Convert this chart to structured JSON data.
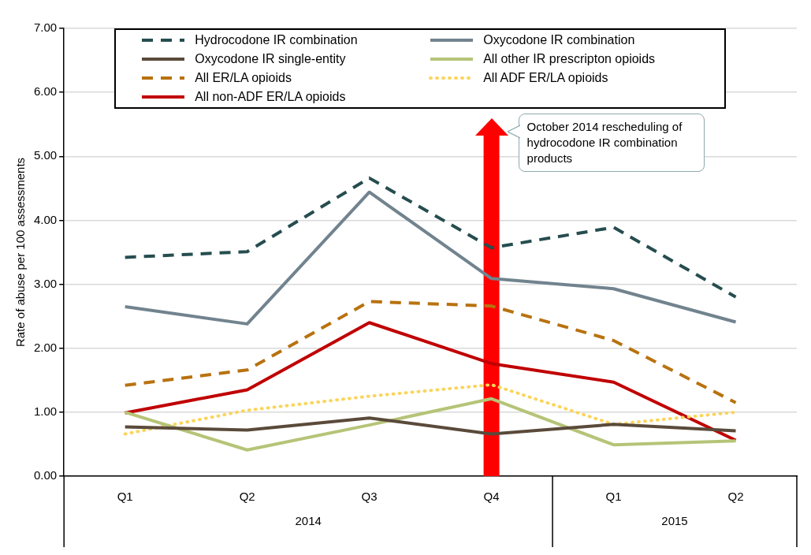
{
  "chart_data": {
    "type": "line",
    "ylabel": "Rate of abuse per 100 assessments",
    "categories": [
      "Q1",
      "Q2",
      "Q3",
      "Q4",
      "Q1",
      "Q2"
    ],
    "series": [
      {
        "name": "Hydrocodone IR combination",
        "color": "#264d4f",
        "line_style": "dashed",
        "values": [
          3.42,
          3.51,
          4.66,
          3.57,
          3.89,
          2.8
        ]
      },
      {
        "name": "Oxycodone IR combination",
        "color": "#71838e",
        "line_style": "solid",
        "values": [
          2.65,
          2.38,
          4.44,
          3.09,
          2.93,
          2.41
        ]
      },
      {
        "name": "Oxycodone IR single-entity",
        "color": "#5a4a3a",
        "line_style": "solid",
        "values": [
          0.77,
          0.72,
          0.91,
          0.66,
          0.81,
          0.71
        ]
      },
      {
        "name": "All other IR prescripton opioids",
        "color": "#b5c477",
        "line_style": "solid",
        "values": [
          1.0,
          0.41,
          0.8,
          1.21,
          0.49,
          0.55
        ]
      },
      {
        "name": "All ER/LA opioids",
        "color": "#b8720f",
        "line_style": "dashed",
        "values": [
          1.42,
          1.66,
          2.73,
          2.66,
          2.12,
          1.15
        ]
      },
      {
        "name": "All ADF ER/LA opioids",
        "color": "#fad55c",
        "line_style": "dotted",
        "values": [
          0.66,
          1.03,
          1.25,
          1.43,
          0.81,
          1.0
        ]
      },
      {
        "name": "All non-ADF ER/LA opioids",
        "color": "#c00000",
        "line_style": "solid",
        "values": [
          0.99,
          1.35,
          2.4,
          1.76,
          1.47,
          0.56
        ]
      }
    ],
    "ylim": [
      0,
      7
    ],
    "yticks": [
      {
        "value": 0,
        "label": "0.00"
      },
      {
        "value": 1,
        "label": "1.00"
      },
      {
        "value": 2,
        "label": "2.00"
      },
      {
        "value": 3,
        "label": "3.00"
      },
      {
        "value": 4,
        "label": "4.00"
      },
      {
        "value": 5,
        "label": "5.00"
      },
      {
        "value": 6,
        "label": "6.00"
      },
      {
        "value": 7,
        "label": "7.00"
      }
    ],
    "grid": "y",
    "legend": "top",
    "marker": "none",
    "annotations": [
      "2014",
      "2015"
    ],
    "ref_lines": [
      {
        "axis": "x",
        "value": "Q4",
        "label": "October 2014 rescheduling of hydrocodone IR combination products",
        "color": "#ff0000"
      }
    ]
  }
}
